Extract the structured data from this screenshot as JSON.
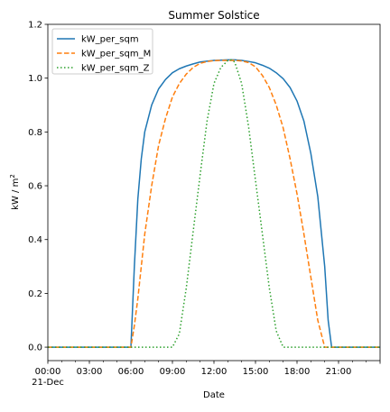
{
  "chart_data": {
    "type": "line",
    "title": "Summer Solstice",
    "xlabel": "Date",
    "ylabel_main": "kW / m",
    "ylabel_sup": "2",
    "x_ticks": [
      "00:00",
      "03:00",
      "06:00",
      "09:00",
      "12:00",
      "15:00",
      "18:00",
      "21:00"
    ],
    "x_tick_date": "21-Dec",
    "x_range_hours": [
      0,
      24
    ],
    "y_ticks": [
      "0.0",
      "0.2",
      "0.4",
      "0.6",
      "0.8",
      "1.0",
      "1.2"
    ],
    "ylim": [
      -0.05,
      1.2
    ],
    "grid": false,
    "legend_position": "upper-left",
    "x_hours": [
      0,
      6.0,
      6.25,
      6.5,
      6.75,
      7.0,
      7.5,
      8.0,
      8.5,
      9.0,
      9.5,
      10.0,
      10.5,
      11.0,
      11.5,
      12.0,
      12.5,
      13.0,
      13.25,
      13.5,
      14.0,
      14.5,
      15.0,
      15.5,
      16.0,
      16.5,
      17.0,
      17.5,
      18.0,
      18.5,
      19.0,
      19.5,
      20.0,
      20.25,
      20.5,
      24
    ],
    "series": [
      {
        "name": "kW_per_sqm",
        "color": "#1f77b4",
        "dash": "solid",
        "values": [
          0,
          0,
          0.3,
          0.55,
          0.7,
          0.8,
          0.9,
          0.96,
          0.995,
          1.02,
          1.035,
          1.045,
          1.053,
          1.06,
          1.063,
          1.066,
          1.067,
          1.068,
          1.068,
          1.068,
          1.066,
          1.062,
          1.057,
          1.048,
          1.037,
          1.02,
          0.998,
          0.965,
          0.915,
          0.84,
          0.72,
          0.56,
          0.3,
          0.1,
          0,
          0
        ]
      },
      {
        "name": "kW_per_sqm_M",
        "color": "#ff7f0e",
        "dash": "dashed",
        "values": [
          0,
          0,
          0.08,
          0.18,
          0.3,
          0.42,
          0.6,
          0.75,
          0.85,
          0.93,
          0.98,
          1.015,
          1.04,
          1.055,
          1.062,
          1.065,
          1.066,
          1.066,
          1.066,
          1.066,
          1.064,
          1.058,
          1.042,
          1.01,
          0.965,
          0.9,
          0.815,
          0.7,
          0.57,
          0.42,
          0.26,
          0.1,
          0,
          0,
          0,
          0
        ]
      },
      {
        "name": "kW_per_sqm_Z",
        "color": "#2ca02c",
        "dash": "dotted",
        "values": [
          0,
          0,
          0,
          0,
          0,
          0,
          0,
          0,
          0,
          0.0,
          0.05,
          0.22,
          0.43,
          0.64,
          0.84,
          0.98,
          1.04,
          1.065,
          1.068,
          1.06,
          0.98,
          0.82,
          0.62,
          0.42,
          0.22,
          0.06,
          0.0,
          0,
          0,
          0,
          0,
          0,
          0,
          0,
          0,
          0
        ]
      }
    ]
  }
}
